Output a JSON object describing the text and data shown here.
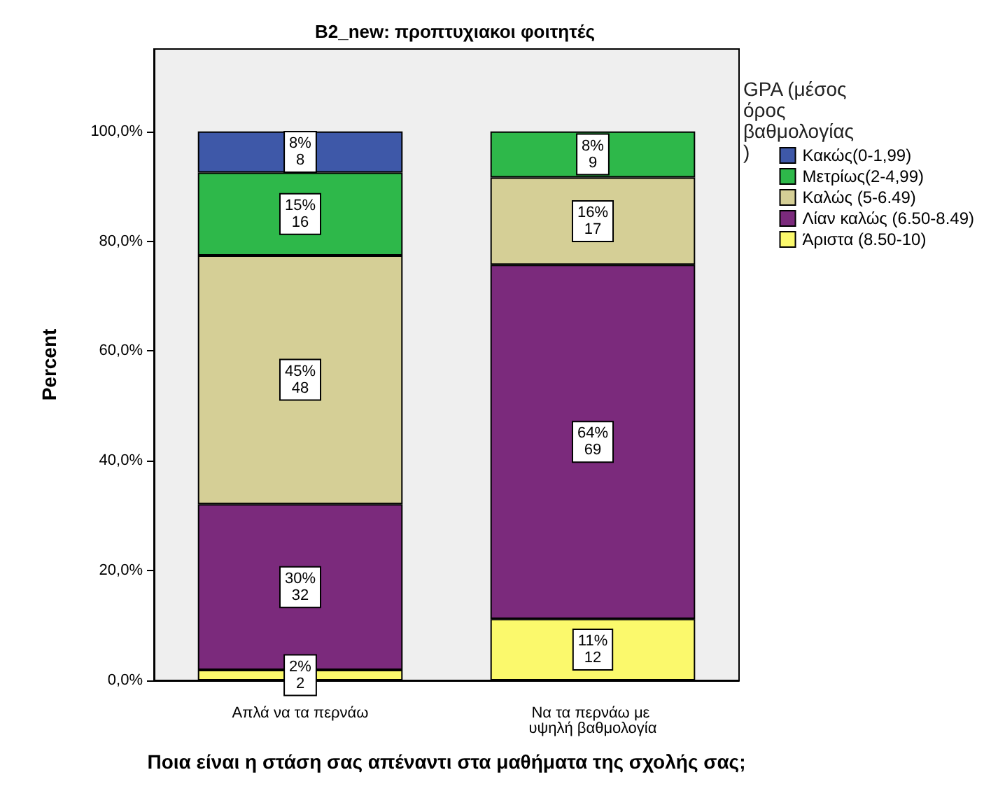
{
  "chart_data": {
    "type": "bar",
    "title": "B2_new: προπτυχιακοι φοιτητές",
    "xlabel": "Ποια είναι η στάση σας απέναντι στα μαθήματα της σχολής σας;",
    "ylabel": "Percent",
    "legend_title": "GPA (μέσος όρος βαθμολογίας)",
    "categories": [
      "Απλά να τα περνάω",
      "Να τα περνάω με υψηλή βαθμολογία"
    ],
    "stacked": true,
    "legend": "right",
    "grid": false,
    "ylim": [
      0,
      115
    ],
    "yticks": [
      {
        "value": 0,
        "label": "0,0%"
      },
      {
        "value": 20,
        "label": "20,0%"
      },
      {
        "value": 40,
        "label": "40,0%"
      },
      {
        "value": 60,
        "label": "60,0%"
      },
      {
        "value": 80,
        "label": "80,0%"
      },
      {
        "value": 100,
        "label": "100,0%"
      }
    ],
    "series": [
      {
        "name": "Άριστα (8.50-10)",
        "color": "#fbf96c",
        "values": [
          1.9,
          11.2
        ],
        "value_labels": [
          "2%\n2",
          "11%\n12"
        ]
      },
      {
        "name": "Λίαν καλώς (6.50-8.49)",
        "color": "#7b2a7c",
        "values": [
          30.2,
          64.5
        ],
        "value_labels": [
          "30%\n32",
          "64%\n69"
        ]
      },
      {
        "name": "Καλώς (5-6.49)",
        "color": "#d5cf96",
        "values": [
          45.3,
          15.9
        ],
        "value_labels": [
          "45%\n48",
          "16%\n17"
        ]
      },
      {
        "name": "Μετρίως(2-4,99)",
        "color": "#2eb84a",
        "values": [
          15.1,
          8.4
        ],
        "value_labels": [
          "15%\n16",
          "8%\n9"
        ]
      },
      {
        "name": "Κακώς(0-1,99)",
        "color": "#3e58a8",
        "values": [
          7.5,
          null
        ],
        "value_labels": [
          "8%\n8",
          null
        ]
      }
    ]
  }
}
